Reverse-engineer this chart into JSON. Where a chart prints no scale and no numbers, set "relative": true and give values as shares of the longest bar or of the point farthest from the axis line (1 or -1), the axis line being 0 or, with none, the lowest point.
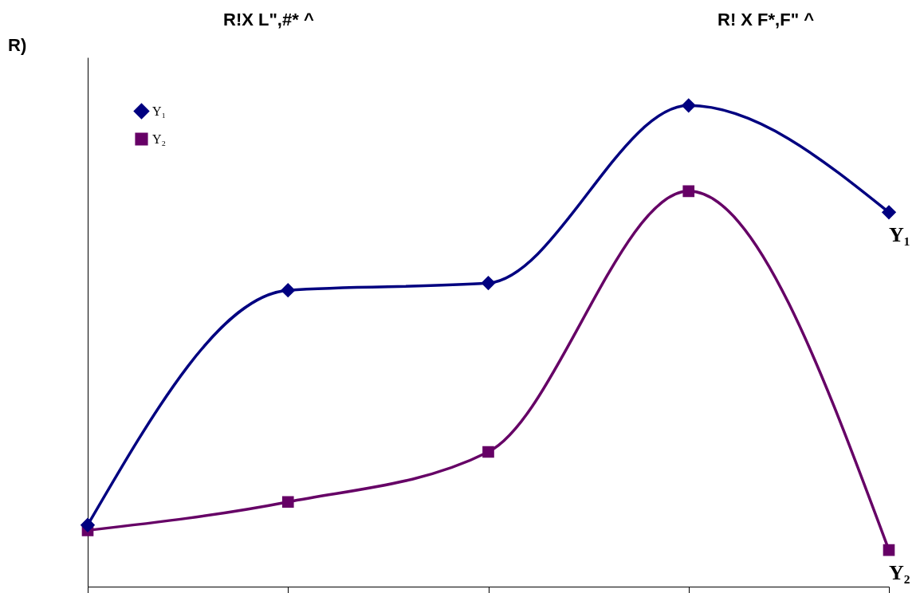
{
  "chart_data": {
    "type": "line",
    "relative": true,
    "annotations": [
      "R!X L\",#* ^",
      "R! X F*,F\" ^",
      "R)"
    ],
    "categories": [
      null,
      null,
      null,
      null,
      null
    ],
    "series": [
      {
        "name": "Y₁",
        "color": "#000080",
        "marker": "diamond",
        "values": [
          0.128,
          0.616,
          0.631,
          1,
          0.778
        ]
      },
      {
        "name": "Y₂",
        "color": "#660066",
        "marker": "square",
        "values": [
          0.117,
          0.176,
          0.28,
          0.822,
          0.076
        ]
      }
    ],
    "legend": "top left",
    "grid": false,
    "line_style": "solid"
  }
}
